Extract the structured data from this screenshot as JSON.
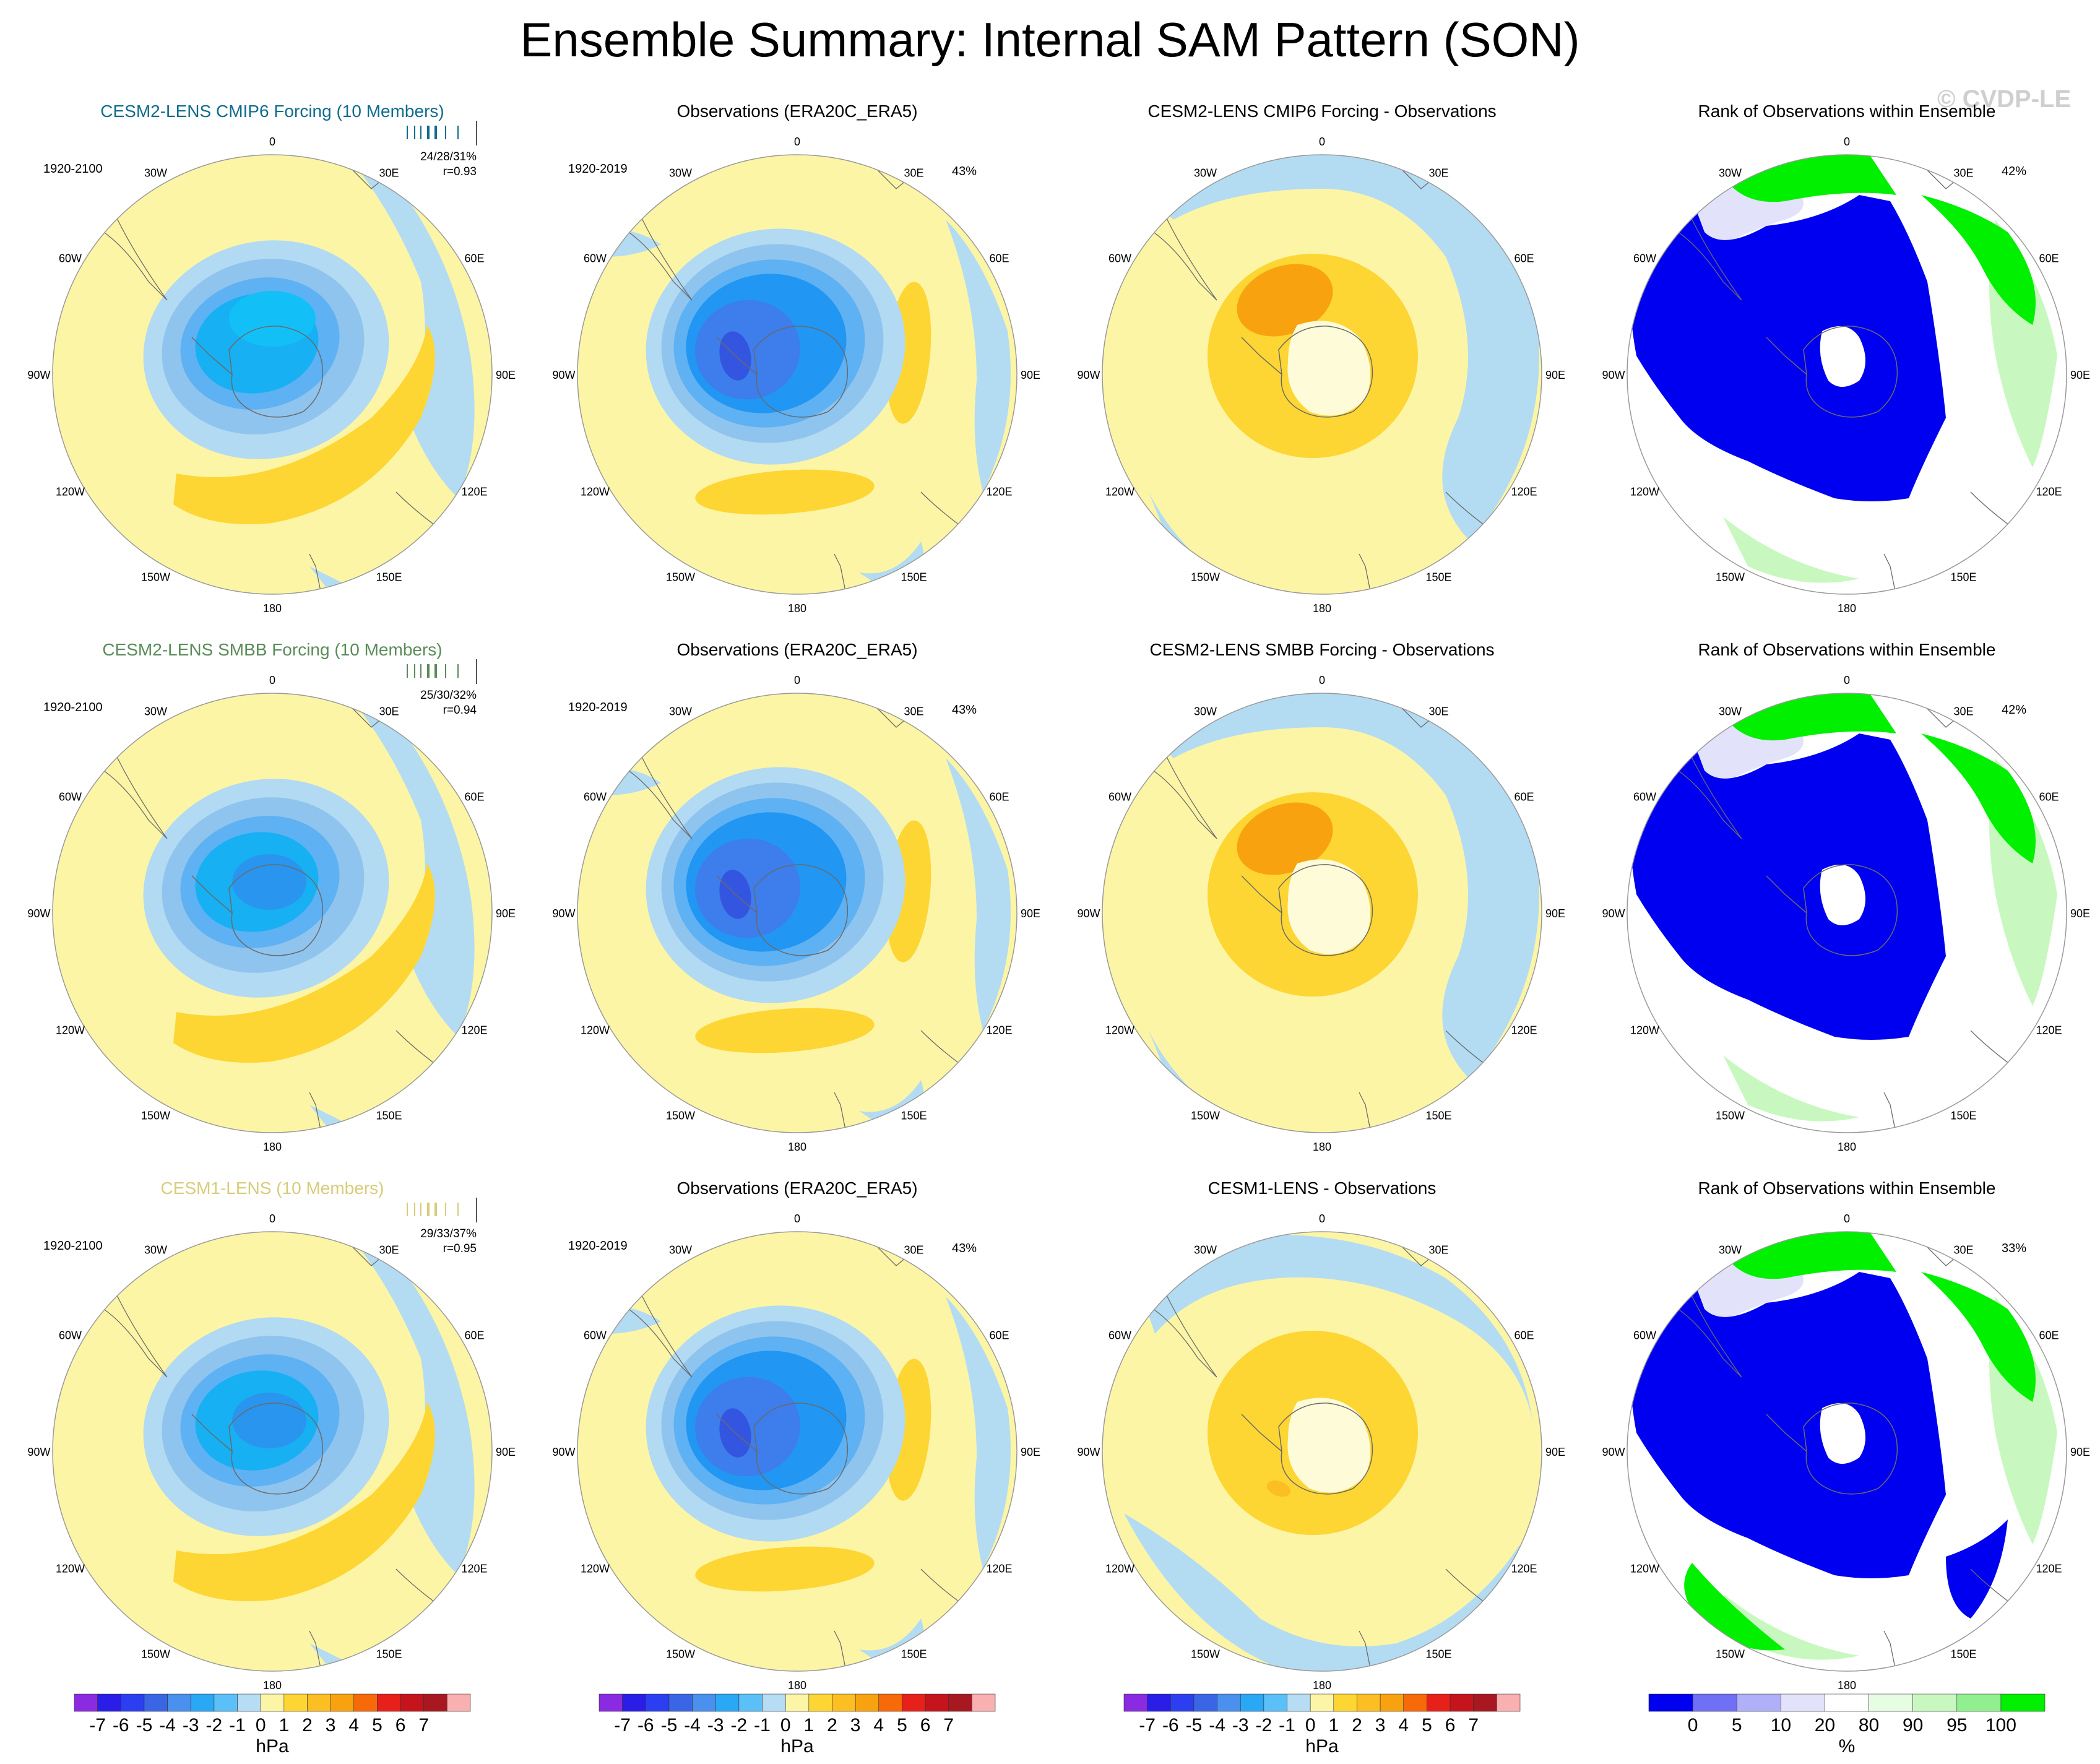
{
  "title": "Ensemble Summary: Internal SAM Pattern (SON)",
  "watermark": "© CVDP-LE",
  "colors": {
    "yellow_bg": "#fdf5a6",
    "light_blue": "#b3dcf3",
    "orange_1": "#fdd634",
    "orange_2": "#fcbf23",
    "orange_3": "#f9a20f",
    "blue_1": "#b2daf2",
    "blue_2": "#8fc4ee",
    "blue_3": "#5eb1f2",
    "blue_4": "#2196f3",
    "blue_5": "#3d7dec",
    "blue_6": "#3355e0",
    "rank_blue": "#0000f0",
    "rank_green": "#00f000",
    "rank_light_green": "#c8f8c0",
    "rank_pale_green": "#e6fde4",
    "rank_lavender": "#e2e2fa",
    "model_cmip6": "#0f6c8c",
    "model_smbb": "#5a8c5a",
    "model_cesm1": "#d8cc7a"
  },
  "lon_labels": [
    "0",
    "30E",
    "60E",
    "90E",
    "120E",
    "150E",
    "180",
    "150W",
    "120W",
    "90W",
    "60W",
    "30W"
  ],
  "rows": [
    {
      "model": {
        "title": "CESM2-LENS CMIP6 Forcing (10 Members)",
        "period": "1920-2100",
        "stats": "24/28/31%",
        "r": "r=0.93",
        "color_key": "model_cmip6"
      },
      "obs": {
        "title": "Observations (ERA20C_ERA5)",
        "period": "1920-2019",
        "pct": "43%"
      },
      "diff": {
        "title": "CESM2-LENS CMIP6 Forcing - Observations"
      },
      "rank": {
        "title": "Rank of Observations within Ensemble",
        "pct": "42%"
      }
    },
    {
      "model": {
        "title": "CESM2-LENS SMBB Forcing (10 Members)",
        "period": "1920-2100",
        "stats": "25/30/32%",
        "r": "r=0.94",
        "color_key": "model_smbb"
      },
      "obs": {
        "title": "Observations (ERA20C_ERA5)",
        "period": "1920-2019",
        "pct": "43%"
      },
      "diff": {
        "title": "CESM2-LENS SMBB Forcing - Observations"
      },
      "rank": {
        "title": "Rank of Observations within Ensemble",
        "pct": "42%"
      }
    },
    {
      "model": {
        "title": "CESM1-LENS (10 Members)",
        "period": "1920-2100",
        "stats": "29/33/37%",
        "r": "r=0.95",
        "color_key": "model_cesm1"
      },
      "obs": {
        "title": "Observations (ERA20C_ERA5)",
        "period": "1920-2019",
        "pct": "43%"
      },
      "diff": {
        "title": "CESM1-LENS - Observations"
      },
      "rank": {
        "title": "Rank of Observations within Ensemble",
        "pct": "33%"
      }
    }
  ],
  "colorbar_hpa": {
    "unit": "hPa",
    "ticks": [
      "-7",
      "-6",
      "-5",
      "-4",
      "-3",
      "-2",
      "-1",
      "0",
      "1",
      "2",
      "3",
      "4",
      "5",
      "6",
      "7"
    ],
    "colors": [
      "#8a2be2",
      "#2a1de8",
      "#2b3ff0",
      "#3a66e6",
      "#4a90ee",
      "#2aa7f5",
      "#5bc0f8",
      "#b6ddf4",
      "#fdf5a6",
      "#fdd634",
      "#fcbf23",
      "#f9a20f",
      "#f76a09",
      "#e8201a",
      "#c5141c",
      "#a81820",
      "#f9b0b0"
    ]
  },
  "colorbar_rank": {
    "unit": "%",
    "ticks": [
      "0",
      "5",
      "10",
      "20",
      "80",
      "90",
      "95",
      "100"
    ],
    "colors": [
      "#0000f0",
      "#7070f4",
      "#b0b0f8",
      "#e2e2fa",
      "#ffffff",
      "#e6fde4",
      "#c8f8c0",
      "#90f090",
      "#00f000"
    ]
  },
  "chart_data": [
    {
      "type": "heatmap",
      "title": "CESM2-LENS CMIP6 Forcing (10 Members)",
      "field": "SLP SAM pattern",
      "unit": "hPa",
      "min": -7,
      "max": 7,
      "pattern_min_approx": -4,
      "pattern_max_approx": 1
    },
    {
      "type": "heatmap",
      "title": "Observations (ERA20C_ERA5)",
      "field": "SLP SAM pattern",
      "unit": "hPa",
      "min": -7,
      "max": 7,
      "pattern_min_approx": -6,
      "pattern_max_approx": 1
    },
    {
      "type": "heatmap",
      "title": "CESM2-LENS CMIP6 Forcing - Observations",
      "field": "difference",
      "unit": "hPa",
      "min": -7,
      "max": 7,
      "pattern_min_approx": -1,
      "pattern_max_approx": 3
    },
    {
      "type": "heatmap",
      "title": "Rank of Observations within Ensemble",
      "field": "rank",
      "unit": "%",
      "min": 0,
      "max": 100
    }
  ]
}
